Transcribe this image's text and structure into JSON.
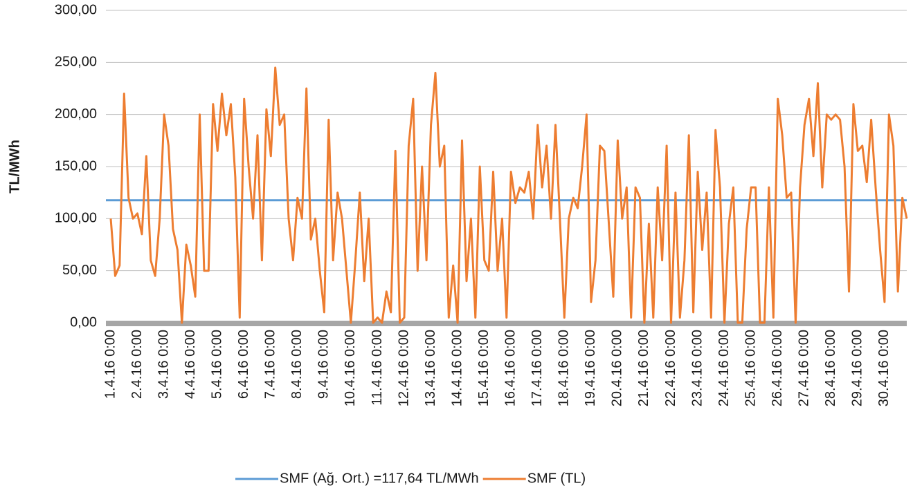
{
  "chart_data": {
    "type": "line",
    "y_axis_label": "TL/MWh",
    "categories": [
      "1.4.16 0:00",
      null,
      null,
      null,
      null,
      null,
      "2.4.16 0:00",
      null,
      null,
      null,
      null,
      null,
      "3.4.16 0:00",
      null,
      null,
      null,
      null,
      null,
      "4.4.16 0:00",
      null,
      null,
      null,
      null,
      null,
      "5.4.16 0:00",
      null,
      null,
      null,
      null,
      null,
      "6.4.16 0:00",
      null,
      null,
      null,
      null,
      null,
      "7.4.16 0:00",
      null,
      null,
      null,
      null,
      null,
      "8.4.16 0:00",
      null,
      null,
      null,
      null,
      null,
      "9.4.16 0:00",
      null,
      null,
      null,
      null,
      null,
      "10.4.16 0:00",
      null,
      null,
      null,
      null,
      null,
      "11.4.16 0:00",
      null,
      null,
      null,
      null,
      null,
      "12.4.16 0:00",
      null,
      null,
      null,
      null,
      null,
      "13.4.16 0:00",
      null,
      null,
      null,
      null,
      null,
      "14.4.16 0:00",
      null,
      null,
      null,
      null,
      null,
      "15.4.16 0:00",
      null,
      null,
      null,
      null,
      null,
      "16.4.16 0:00",
      null,
      null,
      null,
      null,
      null,
      "17.4.16 0:00",
      null,
      null,
      null,
      null,
      null,
      "18.4.16 0:00",
      null,
      null,
      null,
      null,
      null,
      "19.4.16 0:00",
      null,
      null,
      null,
      null,
      null,
      "20.4.16 0:00",
      null,
      null,
      null,
      null,
      null,
      "21.4.16 0:00",
      null,
      null,
      null,
      null,
      null,
      "22.4.16 0:00",
      null,
      null,
      null,
      null,
      null,
      "23.4.16 0:00",
      null,
      null,
      null,
      null,
      null,
      "24.4.16 0:00",
      null,
      null,
      null,
      null,
      null,
      "25.4.16 0:00",
      null,
      null,
      null,
      null,
      null,
      "26.4.16 0:00",
      null,
      null,
      null,
      null,
      null,
      "27.4.16 0:00",
      null,
      null,
      null,
      null,
      null,
      "28.4.16 0:00",
      null,
      null,
      null,
      null,
      null,
      "29.4.16 0:00",
      null,
      null,
      null,
      null,
      null,
      "30.4.16 0:00",
      null,
      null,
      null,
      null,
      null
    ],
    "reference_line": {
      "name": "SMF (Ağ. Ort.) =117,64 TL/MWh",
      "value": 117.64,
      "color": "#5b9bd5"
    },
    "series": [
      {
        "name": "SMF (TL)",
        "color": "#ed7d31",
        "values": [
          100,
          45,
          55,
          220,
          120,
          100,
          105,
          85,
          160,
          60,
          45,
          100,
          200,
          170,
          90,
          70,
          0,
          75,
          55,
          25,
          200,
          50,
          50,
          210,
          165,
          220,
          180,
          210,
          140,
          5,
          215,
          150,
          100,
          180,
          60,
          205,
          160,
          245,
          190,
          200,
          100,
          60,
          120,
          100,
          225,
          80,
          100,
          50,
          10,
          195,
          60,
          125,
          100,
          50,
          0,
          60,
          125,
          40,
          100,
          0,
          5,
          0,
          30,
          10,
          165,
          0,
          5,
          170,
          215,
          50,
          150,
          60,
          190,
          240,
          150,
          170,
          5,
          55,
          0,
          175,
          40,
          100,
          5,
          150,
          60,
          50,
          145,
          50,
          100,
          5,
          145,
          115,
          130,
          125,
          145,
          100,
          190,
          130,
          170,
          100,
          190,
          100,
          5,
          100,
          120,
          110,
          150,
          200,
          20,
          60,
          170,
          165,
          95,
          25,
          175,
          100,
          130,
          5,
          130,
          120,
          0,
          95,
          5,
          130,
          60,
          170,
          0,
          125,
          5,
          60,
          180,
          10,
          145,
          70,
          125,
          5,
          185,
          130,
          0,
          95,
          130,
          0,
          0,
          90,
          130,
          130,
          0,
          0,
          130,
          5,
          215,
          180,
          120,
          125,
          0,
          130,
          190,
          215,
          160,
          230,
          130,
          200,
          195,
          200,
          195,
          150,
          30,
          210,
          165,
          170,
          135,
          195,
          130,
          70,
          20,
          200,
          170,
          30,
          120,
          100
        ]
      }
    ],
    "ylim": [
      0,
      300
    ],
    "yticks": [
      {
        "value": 0,
        "label": "0,00"
      },
      {
        "value": 50,
        "label": "50,00"
      },
      {
        "value": 100,
        "label": "100,00"
      },
      {
        "value": 150,
        "label": "150,00"
      },
      {
        "value": 200,
        "label": "200,00"
      },
      {
        "value": 250,
        "label": "250,00"
      },
      {
        "value": 300,
        "label": "300,00"
      }
    ],
    "grid": true
  }
}
